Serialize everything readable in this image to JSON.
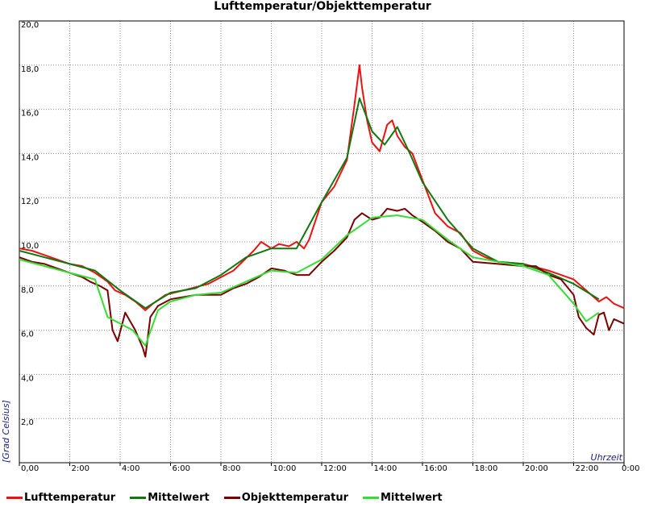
{
  "chart_data": {
    "type": "line",
    "title": "Lufttemperatur/Objekttemperatur",
    "xlabel": "Uhrzeit",
    "ylabel": "[Grad Celsius]",
    "xlim": [
      0,
      24
    ],
    "ylim": [
      0,
      20
    ],
    "grid": true,
    "legend_position": "bottom",
    "x_ticks": [
      "0,00",
      "2:00",
      "4:00",
      "6:00",
      "8:00",
      "10:00",
      "12:00",
      "14:00",
      "16:00",
      "18:00",
      "20:00",
      "22:00",
      "0:00"
    ],
    "y_ticks": [
      "2,0",
      "4,0",
      "6,0",
      "8,0",
      "10,0",
      "12,0",
      "14,0",
      "16,0",
      "18,0",
      "20,0"
    ],
    "series": [
      {
        "name": "Lufttemperatur",
        "color": "#ee1111",
        "x": [
          0,
          0.5,
          1,
          1.5,
          2,
          2.5,
          3,
          3.5,
          3.8,
          4.2,
          4.6,
          5,
          5.3,
          5.8,
          6.5,
          7.5,
          8.5,
          9.3,
          9.6,
          10,
          10.3,
          10.7,
          11,
          11.3,
          11.5,
          12,
          12.5,
          13,
          13.3,
          13.5,
          13.6,
          13.8,
          14,
          14.3,
          14.6,
          14.8,
          15,
          15.3,
          15.6,
          16,
          16.5,
          17,
          17.5,
          18,
          18.5,
          19,
          20,
          21,
          22,
          22.5,
          23,
          23.3,
          23.6,
          24
        ],
        "y": [
          9.7,
          9.6,
          9.4,
          9.2,
          9.0,
          8.9,
          8.6,
          8.2,
          7.8,
          7.6,
          7.3,
          6.9,
          7.2,
          7.6,
          7.8,
          8.1,
          8.7,
          9.6,
          10.0,
          9.7,
          9.9,
          9.8,
          10.0,
          9.7,
          10.1,
          11.8,
          12.5,
          13.7,
          16.2,
          18.0,
          17.0,
          15.5,
          14.5,
          14.1,
          15.3,
          15.5,
          14.8,
          14.3,
          14.0,
          12.8,
          11.3,
          10.7,
          10.4,
          9.6,
          9.3,
          9.1,
          9.0,
          8.7,
          8.3,
          7.8,
          7.3,
          7.5,
          7.2,
          7.0
        ]
      },
      {
        "name": "Mittelwert",
        "color": "#117711",
        "x": [
          0,
          1,
          2,
          3,
          4,
          5,
          6,
          7,
          8,
          9,
          10,
          11,
          12,
          13,
          13.5,
          14,
          14.5,
          15,
          15.5,
          16,
          17,
          18,
          19,
          20,
          21,
          22,
          23
        ],
        "y": [
          9.6,
          9.3,
          9.0,
          8.7,
          7.8,
          7.0,
          7.7,
          7.9,
          8.5,
          9.3,
          9.7,
          9.7,
          11.8,
          13.8,
          16.5,
          15.0,
          14.4,
          15.2,
          14.0,
          12.7,
          11.0,
          9.7,
          9.1,
          9.0,
          8.6,
          8.1,
          7.4
        ]
      },
      {
        "name": "Objekttemperatur",
        "color": "#7a0000",
        "x": [
          0,
          0.5,
          1,
          1.5,
          2,
          2.5,
          2.8,
          3.2,
          3.5,
          3.7,
          3.9,
          4.2,
          4.4,
          4.6,
          4.9,
          5.0,
          5.2,
          5.5,
          6,
          7,
          8,
          8.5,
          9,
          9.5,
          10,
          10.5,
          11,
          11.5,
          12,
          12.5,
          13,
          13.3,
          13.6,
          14,
          14.3,
          14.6,
          15,
          15.3,
          15.6,
          16,
          16.5,
          17,
          17.5,
          18,
          19,
          20,
          20.5,
          21,
          21.5,
          22,
          22.2,
          22.5,
          22.8,
          23,
          23.2,
          23.4,
          23.6,
          24
        ],
        "y": [
          9.3,
          9.1,
          9.0,
          8.8,
          8.6,
          8.4,
          8.2,
          8.0,
          7.8,
          6.0,
          5.5,
          6.8,
          6.4,
          6.0,
          5.2,
          4.8,
          6.6,
          7.1,
          7.4,
          7.6,
          7.6,
          7.9,
          8.1,
          8.4,
          8.8,
          8.7,
          8.5,
          8.5,
          9.1,
          9.6,
          10.2,
          11.0,
          11.3,
          11.0,
          11.1,
          11.5,
          11.4,
          11.5,
          11.2,
          10.9,
          10.5,
          10.0,
          9.7,
          9.1,
          9.0,
          8.9,
          8.9,
          8.5,
          8.3,
          7.6,
          6.6,
          6.1,
          5.8,
          6.7,
          6.8,
          6.0,
          6.5,
          6.3
        ]
      },
      {
        "name": "Mittelwert",
        "color": "#33dd33",
        "x": [
          0,
          1,
          2,
          3,
          3.5,
          4,
          4.5,
          5,
          5.5,
          6,
          7,
          8,
          9,
          10,
          11,
          12,
          13,
          14,
          15,
          16,
          17,
          18,
          19,
          20,
          21,
          22,
          22.5,
          23
        ],
        "y": [
          9.2,
          8.9,
          8.6,
          8.3,
          6.6,
          6.3,
          6.0,
          5.3,
          6.9,
          7.3,
          7.6,
          7.7,
          8.2,
          8.7,
          8.6,
          9.2,
          10.3,
          11.1,
          11.2,
          11.0,
          10.1,
          9.3,
          9.1,
          8.9,
          8.5,
          7.2,
          6.4,
          6.8
        ]
      }
    ]
  }
}
